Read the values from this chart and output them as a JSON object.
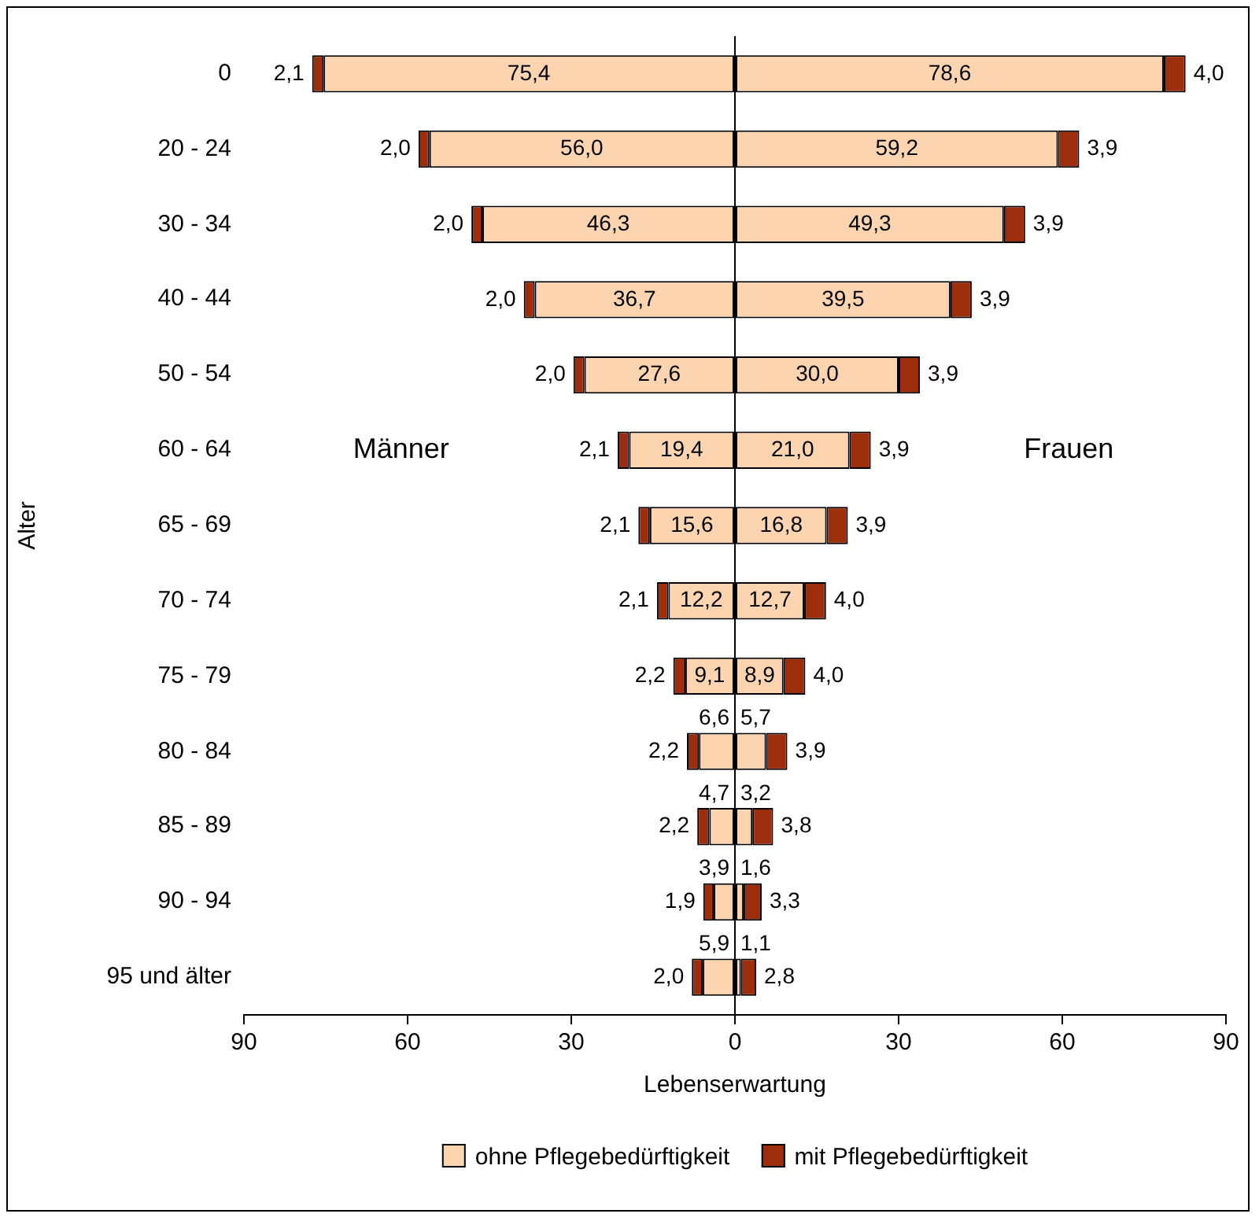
{
  "chart_data": [
    {
      "type": "bar",
      "orientation": "horizontal",
      "stacked": true,
      "ylabel": "Alter",
      "xlabel": "Lebenserwartung",
      "grid": false,
      "categories": [
        "0",
        "20 - 24",
        "30 - 34",
        "40 - 44",
        "50 - 54",
        "60 - 64",
        "65 - 69",
        "70 - 74",
        "75 - 79",
        "80 - 84",
        "85 - 89",
        "90 - 94",
        "95 und älter"
      ],
      "xlim": [
        90,
        0
      ],
      "xticks": [
        90,
        60,
        30,
        0
      ],
      "annotations": [
        "Männer"
      ],
      "series": [
        {
          "color": "#fcd5b0",
          "values": [
            75.4,
            56.0,
            46.3,
            36.7,
            27.6,
            19.4,
            15.6,
            12.2,
            9.1,
            6.6,
            4.7,
            3.9,
            5.9
          ],
          "value_labels": [
            "75,4",
            "56,0",
            "46,3",
            "36,7",
            "27,6",
            "19,4",
            "15,6",
            "12,2",
            "9,1",
            "6,6",
            "4,7",
            "3,9",
            "5,9"
          ]
        },
        {
          "color": "#9c2e0e",
          "values": [
            2.1,
            2.0,
            2.0,
            2.0,
            2.0,
            2.1,
            2.1,
            2.1,
            2.2,
            2.2,
            2.2,
            1.9,
            2.0
          ],
          "value_labels": [
            "2,1",
            "2,0",
            "2,0",
            "2,0",
            "2,0",
            "2,1",
            "2,1",
            "2,1",
            "2,2",
            "2,2",
            "2,2",
            "1,9",
            "2,0"
          ]
        }
      ]
    },
    {
      "type": "bar",
      "orientation": "horizontal",
      "stacked": true,
      "grid": false,
      "legend": "bottom",
      "tick_labels": "x",
      "categories": [
        null,
        null,
        null,
        null,
        null,
        null,
        null,
        null,
        null,
        null,
        null,
        null,
        null
      ],
      "xlim": [
        0,
        90
      ],
      "xticks": [
        {
          "value": 0,
          "label": null
        },
        30,
        60,
        90
      ],
      "annotations": [
        "Frauen"
      ],
      "series": [
        {
          "name": "ohne Pflegebedürftigkeit",
          "color": "#fcd5b0",
          "values": [
            78.6,
            59.2,
            49.3,
            39.5,
            30.0,
            21.0,
            16.8,
            12.7,
            8.9,
            5.7,
            3.2,
            1.6,
            1.1
          ],
          "value_labels": [
            "78,6",
            "59,2",
            "49,3",
            "39,5",
            "30,0",
            "21,0",
            "16,8",
            "12,7",
            "8,9",
            "5,7",
            "3,2",
            "1,6",
            "1,1"
          ]
        },
        {
          "name": "mit Pflegebedürftigkeit",
          "color": "#9c2e0e",
          "values": [
            4.0,
            3.9,
            3.9,
            3.9,
            3.9,
            3.9,
            3.9,
            4.0,
            4.0,
            3.9,
            3.8,
            3.3,
            2.8
          ],
          "value_labels": [
            "4,0",
            "3,9",
            "3,9",
            "3,9",
            "3,9",
            "3,9",
            "3,9",
            "4,0",
            "4,0",
            "3,9",
            "3,8",
            "3,3",
            "2,8"
          ]
        }
      ]
    }
  ]
}
